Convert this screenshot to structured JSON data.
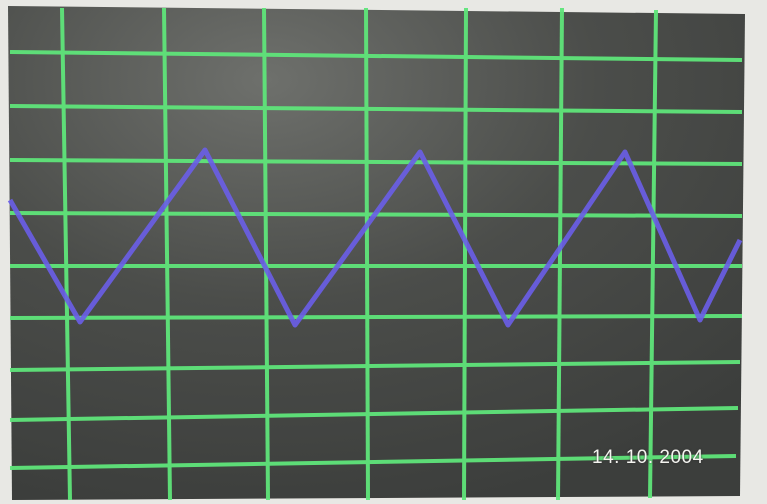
{
  "date_stamp": "14. 10. 2004"
}
